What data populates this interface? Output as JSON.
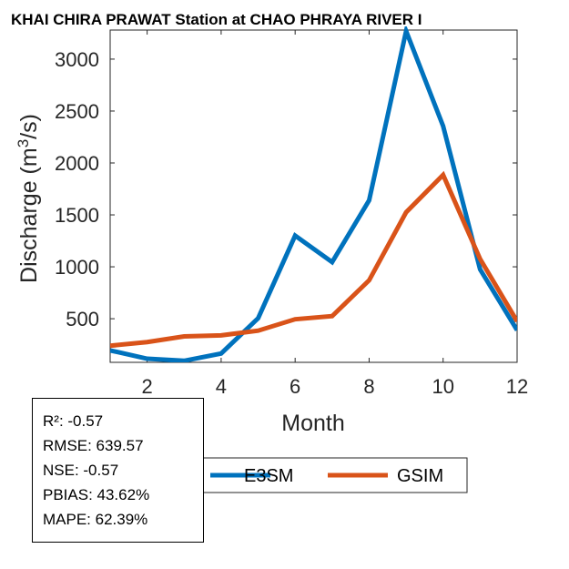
{
  "chart_data": {
    "type": "line",
    "title": "KHAI CHIRA PRAWAT  Station at  CHAO PHRAYA RIVER  I",
    "xlabel": "Month",
    "ylabel_main": "Discharge (m",
    "ylabel_sup": "3",
    "ylabel_end": "/s)",
    "x": [
      1,
      2,
      3,
      4,
      5,
      6,
      7,
      8,
      9,
      10,
      11,
      12
    ],
    "xlim": [
      1,
      12
    ],
    "ylim": [
      80,
      3280
    ],
    "xticks": [
      2,
      4,
      6,
      8,
      10,
      12
    ],
    "yticks": [
      500,
      1000,
      1500,
      2000,
      2500,
      3000
    ],
    "series": [
      {
        "name": "E3SM",
        "color": "#0072BD",
        "values": [
          195,
          115,
          95,
          165,
          505,
          1300,
          1045,
          1640,
          3270,
          2355,
          975,
          390
        ]
      },
      {
        "name": "GSIM",
        "color": "#D95319",
        "values": [
          240,
          275,
          330,
          340,
          385,
          495,
          525,
          870,
          1525,
          1885,
          1075,
          475
        ]
      }
    ],
    "legend_location": "below-plot",
    "grid": false
  },
  "stats": [
    "R²: -0.57",
    "RMSE: 639.57",
    "NSE: -0.57",
    "PBIAS: 43.62%",
    "MAPE: 62.39%"
  ]
}
